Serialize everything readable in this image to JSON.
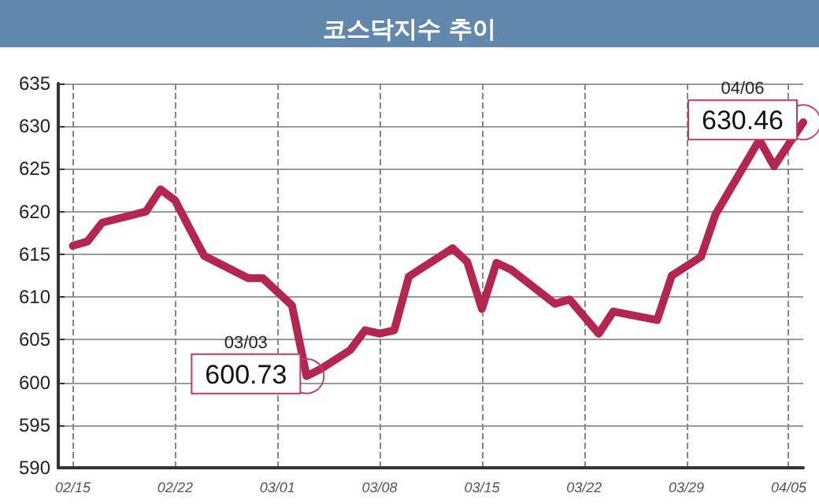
{
  "chart_data": {
    "type": "line",
    "title": "코스닥지수 추이",
    "x": [
      "--02-15",
      "--02-16",
      "--02-17",
      "--02-20",
      "--02-21",
      "--02-22",
      "--02-23",
      "--02-24",
      "--02-27",
      "--02-28",
      "--03-02",
      "--03-03",
      "--03-04",
      "--03-06",
      "--03-07",
      "--03-08",
      "--03-09",
      "--03-10",
      "--03-13",
      "--03-14",
      "--03-15",
      "--03-16",
      "--03-17",
      "--03-20",
      "--03-21",
      "--03-23",
      "--03-24",
      "--03-27",
      "--03-28",
      "--03-30",
      "--03-31",
      "--04-03",
      "--04-04",
      "--04-06"
    ],
    "series": [
      {
        "color": "#b3264f",
        "values": [
          616.0,
          616.5,
          618.7,
          620.0,
          622.6,
          621.3,
          618.0,
          614.8,
          612.2,
          612.2,
          609.0,
          600.73,
          601.6,
          603.8,
          606.1,
          605.7,
          606.1,
          612.4,
          615.7,
          614.1,
          608.6,
          614.0,
          613.2,
          609.2,
          609.7,
          605.7,
          608.3,
          607.3,
          612.5,
          614.7,
          619.7,
          628.4,
          625.3,
          630.46
        ]
      }
    ],
    "annotations": [
      {
        "text": "03/03",
        "x": "--03-03",
        "y": 600.73
      },
      {
        "text": "600.73",
        "x": "--03-03",
        "y": 600.73
      },
      {
        "text": "04/06",
        "x": "--04-06",
        "y": 630.46
      },
      {
        "text": "630.46",
        "x": "--04-06",
        "y": 630.46
      }
    ],
    "xlim": [
      "--02-14",
      "--04-06"
    ],
    "xticks": [
      {
        "value": "--02-15",
        "label": "02/15"
      },
      {
        "value": "--02-22",
        "label": "02/22"
      },
      {
        "value": "--03-01",
        "label": "03/01"
      },
      {
        "value": "--03-08",
        "label": "03/08"
      },
      {
        "value": "--03-15",
        "label": "03/15"
      },
      {
        "value": "--03-22",
        "label": "03/22"
      },
      {
        "value": "--03-29",
        "label": "03/29"
      },
      {
        "value": "--04-05",
        "label": "04/05"
      }
    ],
    "ylim": [
      590,
      635
    ],
    "yticks": [
      590,
      595,
      600,
      605,
      610,
      615,
      620,
      625,
      630,
      635
    ],
    "grid": true,
    "marker": "none",
    "line_style": "solid"
  }
}
